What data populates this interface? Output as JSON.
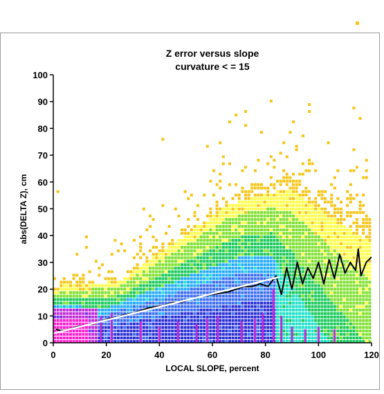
{
  "chart_data": {
    "type": "heatmap",
    "title_line1": "Z error versus slope",
    "title_line2": "curvature < = 15",
    "xlabel": "LOCAL SLOPE, percent",
    "ylabel": "abs(DELTA Z), cm",
    "xlim": [
      0,
      120
    ],
    "ylim": [
      0,
      100
    ],
    "xticks": [
      0,
      20,
      40,
      60,
      80,
      100,
      120
    ],
    "yticks": [
      0,
      10,
      20,
      30,
      40,
      50,
      60,
      70,
      80,
      90,
      100
    ],
    "grid": false,
    "legend": "none",
    "density_colors": [
      "#f5c518",
      "#ffff44",
      "#7fe030",
      "#19c95a",
      "#1fe0c8",
      "#20aaff",
      "#3b6cf2",
      "#2b2fd6",
      "#7a2ff0",
      "#c02bd8",
      "#ff1fd0"
    ],
    "series": [
      {
        "name": "",
        "style": "black-line",
        "x": [
          1,
          3,
          6,
          9,
          12,
          15,
          18,
          21,
          24,
          27,
          30,
          33,
          36,
          39,
          42,
          45,
          48,
          51,
          54,
          57,
          60,
          63,
          66,
          69,
          72,
          75,
          78,
          81,
          84,
          86,
          88,
          90,
          92,
          94,
          96,
          98,
          100,
          102,
          104,
          106,
          108,
          110,
          112,
          114,
          115,
          116,
          118,
          120
        ],
        "y": [
          5,
          4.5,
          5,
          6,
          6.5,
          7,
          8,
          9,
          9.5,
          10.5,
          11,
          12,
          13,
          13.5,
          14,
          15,
          15,
          16,
          17,
          17.5,
          18,
          18.5,
          19,
          20,
          21,
          21,
          22,
          21,
          25,
          18,
          28,
          20,
          30,
          22,
          28,
          24,
          30,
          22,
          31,
          24,
          33,
          26,
          30,
          27,
          35,
          25,
          30,
          32
        ]
      },
      {
        "name": "",
        "style": "white-regression-line",
        "x": [
          0,
          85
        ],
        "y": [
          3.5,
          24.5
        ]
      }
    ]
  }
}
